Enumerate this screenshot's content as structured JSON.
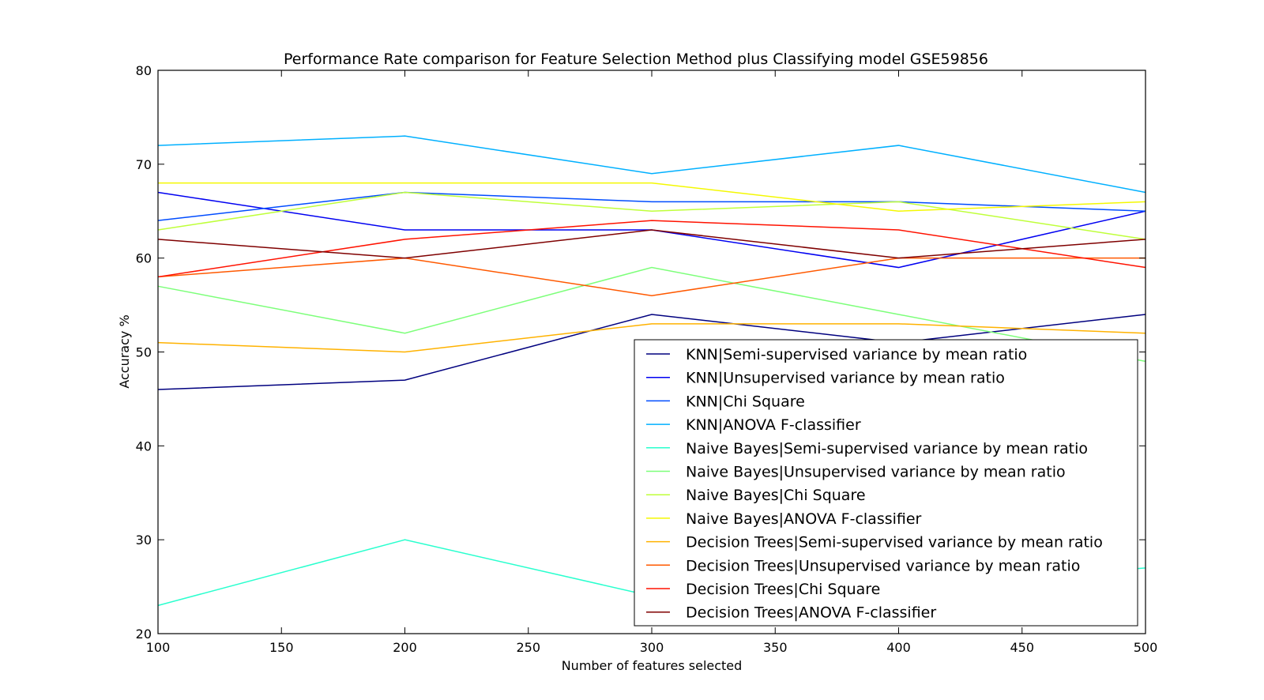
{
  "chart_data": {
    "type": "line",
    "title": "Performance Rate comparison for Feature Selection Method plus Classifying model GSE59856",
    "xlabel": "Number of features selected",
    "ylabel": "Accuracy %",
    "xlim": [
      100,
      500
    ],
    "ylim": [
      20,
      80
    ],
    "xticks": [
      100,
      150,
      200,
      250,
      300,
      350,
      400,
      450,
      500
    ],
    "yticks": [
      20,
      30,
      40,
      50,
      60,
      70,
      80
    ],
    "grid": false,
    "legend_position": "lower-right",
    "x": [
      100,
      200,
      300,
      400,
      500
    ],
    "series": [
      {
        "name": "KNN|Semi-supervised variance by mean ratio",
        "color": "#00007f",
        "values": [
          46,
          47,
          54,
          51,
          54
        ]
      },
      {
        "name": "KNN|Unsupervised variance by mean ratio",
        "color": "#0000f1",
        "values": [
          67,
          63,
          63,
          59,
          65
        ]
      },
      {
        "name": "KNN|Chi Square",
        "color": "#004cff",
        "values": [
          64,
          67,
          66,
          66,
          65
        ]
      },
      {
        "name": "KNN|ANOVA F-classifier",
        "color": "#00b0ff",
        "values": [
          72,
          73,
          69,
          72,
          67
        ]
      },
      {
        "name": "Naive Bayes|Semi-supervised variance by mean ratio",
        "color": "#29ffce",
        "values": [
          23,
          30,
          24,
          25,
          27
        ]
      },
      {
        "name": "Naive Bayes|Unsupervised variance by mean ratio",
        "color": "#7dff7a",
        "values": [
          57,
          52,
          59,
          54,
          49
        ]
      },
      {
        "name": "Naive Bayes|Chi Square",
        "color": "#bfff3a",
        "values": [
          63,
          67,
          65,
          66,
          62
        ]
      },
      {
        "name": "Naive Bayes|ANOVA F-classifier",
        "color": "#f4f802",
        "values": [
          68,
          68,
          68,
          65,
          66
        ]
      },
      {
        "name": "Decision Trees|Semi-supervised variance by mean ratio",
        "color": "#ffb200",
        "values": [
          51,
          50,
          53,
          53,
          52
        ]
      },
      {
        "name": "Decision Trees|Unsupervised variance by mean ratio",
        "color": "#ff5900",
        "values": [
          58,
          60,
          56,
          60,
          60
        ]
      },
      {
        "name": "Decision Trees|Chi Square",
        "color": "#ff1200",
        "values": [
          58,
          62,
          64,
          63,
          59
        ]
      },
      {
        "name": "Decision Trees|ANOVA F-classifier",
        "color": "#7f0000",
        "values": [
          62,
          60,
          63,
          60,
          62
        ]
      }
    ]
  }
}
